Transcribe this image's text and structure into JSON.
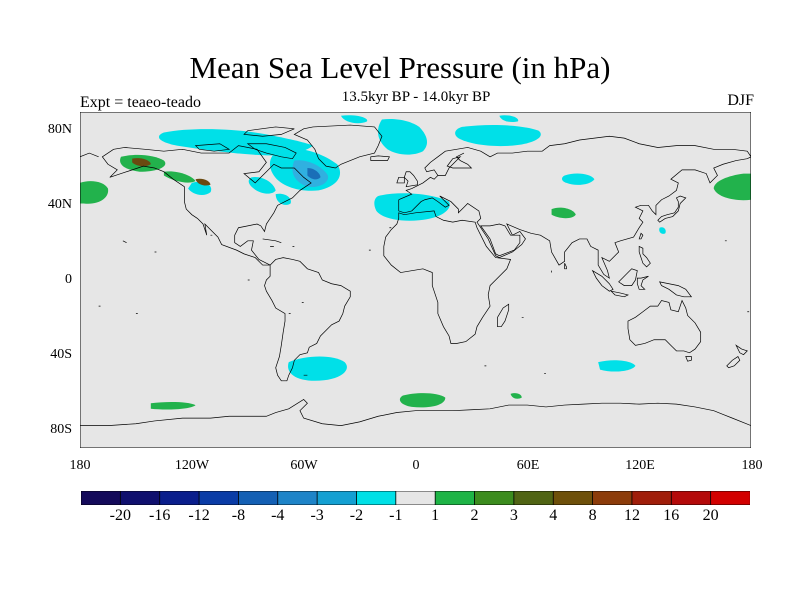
{
  "title": "Mean Sea Level Pressure (in hPa)",
  "subtitle": "13.5kyr BP - 14.0kyr BP",
  "experiment_label": "Expt = teaeo-teado",
  "season_label": "DJF",
  "latitude_ticks": [
    "80N",
    "40N",
    "0",
    "40S",
    "80S"
  ],
  "longitude_ticks": [
    "180",
    "120W",
    "60W",
    "0",
    "60E",
    "120E",
    "180"
  ],
  "colors": {
    "ocean_background": "#e6e6e6",
    "coastline": "#000000",
    "anomaly_negative_light": "#00e0e8",
    "anomaly_negative_mid": "#30b0e0",
    "anomaly_negative_dark": "#1a6fb8",
    "anomaly_positive_light": "#22b24c",
    "anomaly_positive_dark": "#6a4a10"
  },
  "colorbar": {
    "colors": [
      "#140a5a",
      "#10106e",
      "#0a1e8c",
      "#0a3ca6",
      "#1460b4",
      "#1e84c8",
      "#14a0d2",
      "#00e0e6",
      "#e6e6e6",
      "#1eb446",
      "#3c8c1e",
      "#506414",
      "#6e500a",
      "#8c3c0a",
      "#a01e0a",
      "#b40a0a",
      "#d20000"
    ],
    "labels": [
      "-20",
      "-16",
      "-12",
      "-8",
      "-4",
      "-3",
      "-2",
      "-1",
      "1",
      "2",
      "3",
      "4",
      "8",
      "12",
      "16",
      "20"
    ]
  }
}
